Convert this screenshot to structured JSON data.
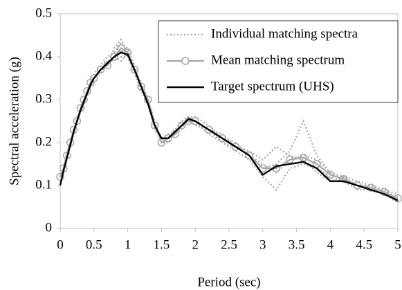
{
  "chart_data": {
    "type": "line",
    "x_label": "Period (sec)",
    "y_label": "Spectral acceleration (g)",
    "x": [
      0,
      0.05,
      0.1,
      0.15,
      0.2,
      0.25,
      0.3,
      0.35,
      0.4,
      0.45,
      0.5,
      0.6,
      0.7,
      0.8,
      0.9,
      1.0,
      1.1,
      1.2,
      1.3,
      1.4,
      1.5,
      1.6,
      1.7,
      1.8,
      1.9,
      2.0,
      2.2,
      2.4,
      2.6,
      2.8,
      3.0,
      3.2,
      3.4,
      3.6,
      3.8,
      4.0,
      4.2,
      4.4,
      4.6,
      4.8,
      5.0
    ],
    "series": [
      {
        "name": "Individual matching spectra",
        "color": "#a6a6a6",
        "style": "dotted",
        "values": [
          0.12,
          0.14,
          0.17,
          0.2,
          0.23,
          0.25,
          0.28,
          0.3,
          0.32,
          0.34,
          0.35,
          0.37,
          0.38,
          0.42,
          0.44,
          0.41,
          0.37,
          0.34,
          0.3,
          0.25,
          0.2,
          0.21,
          0.23,
          0.25,
          0.26,
          0.26,
          0.24,
          0.21,
          0.2,
          0.17,
          0.14,
          0.15,
          0.18,
          0.25,
          0.17,
          0.13,
          0.12,
          0.1,
          0.1,
          0.09,
          0.07
        ]
      },
      {
        "color": "#a6a6a6",
        "style": "dotted",
        "values": [
          0.12,
          0.13,
          0.16,
          0.19,
          0.22,
          0.26,
          0.27,
          0.29,
          0.31,
          0.33,
          0.35,
          0.36,
          0.39,
          0.39,
          0.4,
          0.4,
          0.36,
          0.32,
          0.29,
          0.23,
          0.21,
          0.22,
          0.22,
          0.24,
          0.25,
          0.24,
          0.23,
          0.2,
          0.18,
          0.16,
          0.12,
          0.09,
          0.14,
          0.15,
          0.14,
          0.12,
          0.11,
          0.09,
          0.09,
          0.08,
          0.06
        ]
      },
      {
        "color": "#a6a6a6",
        "style": "dotted",
        "values": [
          0.12,
          0.14,
          0.18,
          0.2,
          0.23,
          0.25,
          0.28,
          0.3,
          0.32,
          0.34,
          0.36,
          0.38,
          0.4,
          0.41,
          0.43,
          0.42,
          0.38,
          0.33,
          0.3,
          0.24,
          0.2,
          0.2,
          0.22,
          0.23,
          0.26,
          0.25,
          0.22,
          0.2,
          0.19,
          0.18,
          0.16,
          0.19,
          0.17,
          0.16,
          0.13,
          0.11,
          0.12,
          0.11,
          0.1,
          0.09,
          0.08
        ]
      },
      {
        "color": "#a6a6a6",
        "style": "dotted",
        "values": [
          0.12,
          0.14,
          0.17,
          0.2,
          0.23,
          0.25,
          0.27,
          0.29,
          0.31,
          0.33,
          0.35,
          0.37,
          0.38,
          0.4,
          0.39,
          0.41,
          0.37,
          0.34,
          0.3,
          0.24,
          0.2,
          0.21,
          0.22,
          0.24,
          0.25,
          0.25,
          0.23,
          0.22,
          0.19,
          0.17,
          0.15,
          0.13,
          0.16,
          0.17,
          0.16,
          0.13,
          0.11,
          0.1,
          0.09,
          0.08,
          0.07
        ]
      },
      {
        "name": "Mean matching spectrum",
        "color": "#a6a6a6",
        "style": "solid",
        "marker": "circle",
        "values": [
          0.12,
          0.14,
          0.17,
          0.2,
          0.23,
          0.25,
          0.28,
          0.3,
          0.32,
          0.34,
          0.35,
          0.37,
          0.38,
          0.4,
          0.42,
          0.41,
          0.37,
          0.33,
          0.3,
          0.24,
          0.2,
          0.21,
          0.22,
          0.24,
          0.25,
          0.25,
          0.23,
          0.21,
          0.19,
          0.17,
          0.14,
          0.14,
          0.16,
          0.165,
          0.15,
          0.125,
          0.115,
          0.1,
          0.095,
          0.085,
          0.07
        ]
      },
      {
        "name": "Target spectrum (UHS)",
        "color": "#000000",
        "style": "solid",
        "values": [
          0.1,
          0.135,
          0.165,
          0.195,
          0.225,
          0.25,
          0.275,
          0.295,
          0.315,
          0.335,
          0.35,
          0.37,
          0.385,
          0.4,
          0.41,
          0.405,
          0.37,
          0.33,
          0.29,
          0.24,
          0.21,
          0.21,
          0.225,
          0.24,
          0.255,
          0.25,
          0.23,
          0.21,
          0.19,
          0.17,
          0.125,
          0.145,
          0.15,
          0.155,
          0.14,
          0.11,
          0.11,
          0.1,
          0.09,
          0.08,
          0.065
        ]
      }
    ],
    "xlim": [
      0,
      5
    ],
    "xticks": [
      0,
      0.5,
      1,
      1.5,
      2,
      2.5,
      3,
      3.5,
      4,
      4.5,
      5
    ],
    "ylim": [
      0,
      0.5
    ],
    "yticks": [
      0,
      0.1,
      0.2,
      0.3,
      0.4,
      0.5
    ],
    "grid": false,
    "legend": "upper right"
  }
}
